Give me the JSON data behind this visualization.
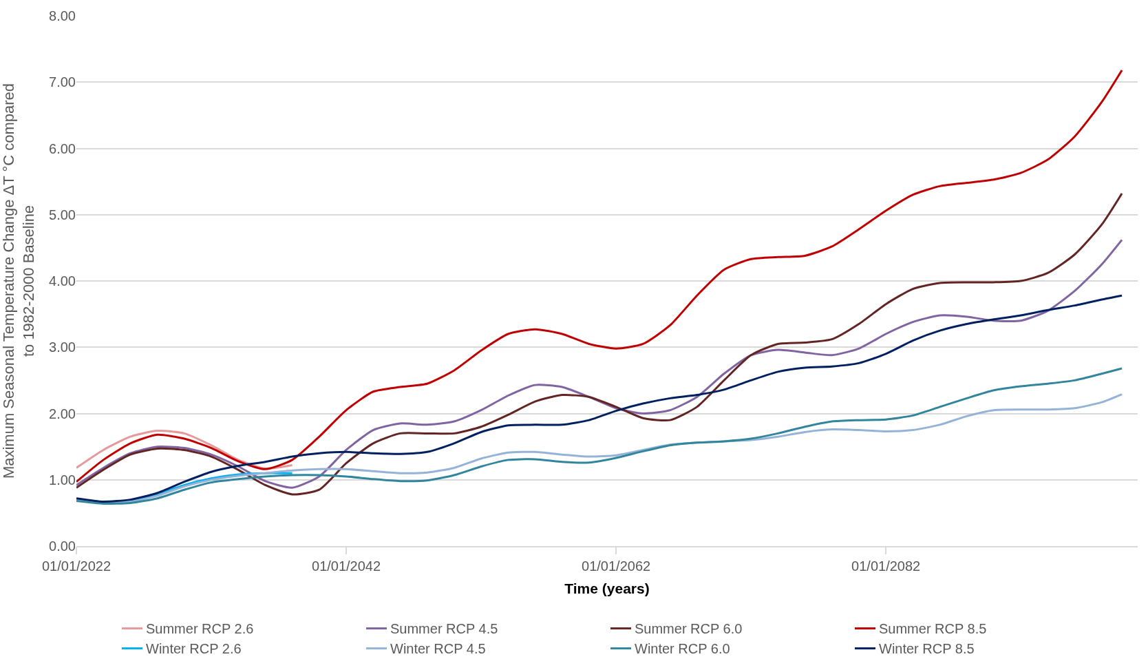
{
  "chart_data": {
    "type": "line",
    "xlabel": "Time (years)",
    "ylabel": "Maximum Seasonal Temperature Change ΔT °C compared to 1982-2000 Baseline",
    "x": [
      "2022",
      "2024",
      "2026",
      "2028",
      "2030",
      "2032",
      "2034",
      "2036",
      "2038",
      "2040",
      "2042",
      "2044",
      "2046",
      "2048",
      "2050",
      "2052",
      "2054",
      "2056",
      "2058",
      "2060",
      "2062",
      "2064",
      "2066",
      "2068",
      "2070",
      "2072",
      "2074",
      "2076",
      "2078",
      "2080",
      "2082",
      "2084",
      "2086",
      "2088",
      "2090",
      "2092",
      "2094",
      "2096",
      "2098",
      "2099-07"
    ],
    "xlim": [
      "2022",
      "2100-09"
    ],
    "xticks": [
      {
        "value": "2022",
        "label": "01/01/2022"
      },
      {
        "value": "2042",
        "label": "01/01/2042"
      },
      {
        "value": "2062",
        "label": "01/01/2062"
      },
      {
        "value": "2082",
        "label": "01/01/2082"
      }
    ],
    "ylim": [
      0,
      8
    ],
    "yticks": [
      {
        "value": 0,
        "label": "0.00"
      },
      {
        "value": 1,
        "label": "1.00"
      },
      {
        "value": 2,
        "label": "2.00"
      },
      {
        "value": 3,
        "label": "3.00"
      },
      {
        "value": 4,
        "label": "4.00"
      },
      {
        "value": 5,
        "label": "5.00"
      },
      {
        "value": 6,
        "label": "6.00"
      },
      {
        "value": 7,
        "label": "7.00"
      },
      {
        "value": 8,
        "label": "8.00"
      }
    ],
    "grid": "y",
    "legend": "bottom",
    "marker": "none",
    "line_style": "solid",
    "series": [
      {
        "name": "Summer RCP 2.6",
        "color": "#e6999b",
        "values": [
          1.18,
          1.45,
          1.65,
          1.74,
          1.7,
          1.52,
          1.3,
          1.17,
          1.22,
          null,
          null,
          null,
          null,
          null,
          null,
          null,
          null,
          null,
          null,
          null,
          null,
          null,
          null,
          null,
          null,
          null,
          null,
          null,
          null,
          null,
          null,
          null,
          null,
          null,
          null,
          null,
          null,
          null,
          null,
          null
        ]
      },
      {
        "name": "Summer RCP 4.5",
        "color": "#8064a2",
        "values": [
          0.92,
          1.18,
          1.4,
          1.5,
          1.48,
          1.38,
          1.2,
          0.98,
          0.88,
          1.05,
          1.45,
          1.75,
          1.85,
          1.83,
          1.88,
          2.05,
          2.27,
          2.43,
          2.4,
          2.25,
          2.08,
          2.0,
          2.05,
          2.25,
          2.6,
          2.88,
          2.96,
          2.92,
          2.88,
          2.98,
          3.2,
          3.38,
          3.48,
          3.46,
          3.4,
          3.4,
          3.55,
          3.85,
          4.25,
          4.62
        ]
      },
      {
        "name": "Summer RCP 6.0",
        "color": "#632523",
        "values": [
          0.88,
          1.15,
          1.38,
          1.47,
          1.45,
          1.35,
          1.15,
          0.92,
          0.78,
          0.85,
          1.25,
          1.55,
          1.7,
          1.7,
          1.7,
          1.8,
          1.98,
          2.18,
          2.28,
          2.25,
          2.1,
          1.93,
          1.9,
          2.1,
          2.5,
          2.88,
          3.05,
          3.07,
          3.12,
          3.35,
          3.65,
          3.88,
          3.97,
          3.98,
          3.98,
          4.0,
          4.12,
          4.4,
          4.85,
          5.32
        ]
      },
      {
        "name": "Summer RCP 8.5",
        "color": "#c00000",
        "values": [
          0.97,
          1.3,
          1.55,
          1.68,
          1.62,
          1.48,
          1.28,
          1.16,
          1.3,
          1.65,
          2.05,
          2.33,
          2.4,
          2.45,
          2.65,
          2.95,
          3.2,
          3.27,
          3.2,
          3.05,
          2.98,
          3.05,
          3.33,
          3.78,
          4.17,
          4.33,
          4.36,
          4.38,
          4.52,
          4.78,
          5.06,
          5.3,
          5.43,
          5.48,
          5.53,
          5.63,
          5.83,
          6.18,
          6.7,
          7.18
        ]
      },
      {
        "name": "Winter RCP 2.6",
        "color": "#00b0f0",
        "values": [
          null,
          null,
          0.68,
          0.78,
          0.92,
          1.02,
          1.08,
          1.1,
          1.1,
          null,
          null,
          null,
          null,
          null,
          null,
          null,
          null,
          null,
          null,
          null,
          null,
          null,
          null,
          null,
          null,
          null,
          null,
          null,
          null,
          null,
          null,
          null,
          null,
          null,
          null,
          null,
          null,
          null,
          null,
          null
        ]
      },
      {
        "name": "Winter RCP 4.5",
        "color": "#95b3d7",
        "values": [
          0.7,
          0.65,
          0.67,
          0.76,
          0.9,
          1.0,
          1.06,
          1.1,
          1.14,
          1.16,
          1.16,
          1.13,
          1.1,
          1.11,
          1.18,
          1.32,
          1.41,
          1.42,
          1.38,
          1.35,
          1.37,
          1.45,
          1.53,
          1.56,
          1.58,
          1.6,
          1.65,
          1.72,
          1.76,
          1.75,
          1.73,
          1.75,
          1.83,
          1.96,
          2.05,
          2.06,
          2.06,
          2.08,
          2.17,
          2.29
        ]
      },
      {
        "name": "Winter RCP 6.0",
        "color": "#31859c",
        "values": [
          0.68,
          0.64,
          0.65,
          0.72,
          0.85,
          0.96,
          1.01,
          1.05,
          1.07,
          1.07,
          1.05,
          1.01,
          0.98,
          0.99,
          1.07,
          1.2,
          1.3,
          1.31,
          1.27,
          1.26,
          1.33,
          1.43,
          1.52,
          1.56,
          1.58,
          1.62,
          1.7,
          1.8,
          1.88,
          1.9,
          1.91,
          1.97,
          2.1,
          2.23,
          2.35,
          2.41,
          2.45,
          2.5,
          2.6,
          2.68
        ]
      },
      {
        "name": "Winter RCP 8.5",
        "color": "#002060",
        "values": [
          0.72,
          0.67,
          0.7,
          0.8,
          0.97,
          1.12,
          1.21,
          1.27,
          1.35,
          1.4,
          1.42,
          1.4,
          1.39,
          1.42,
          1.55,
          1.72,
          1.82,
          1.83,
          1.83,
          1.9,
          2.04,
          2.15,
          2.23,
          2.28,
          2.36,
          2.5,
          2.63,
          2.69,
          2.71,
          2.76,
          2.9,
          3.1,
          3.25,
          3.35,
          3.42,
          3.48,
          3.56,
          3.63,
          3.72,
          3.78
        ]
      }
    ]
  }
}
